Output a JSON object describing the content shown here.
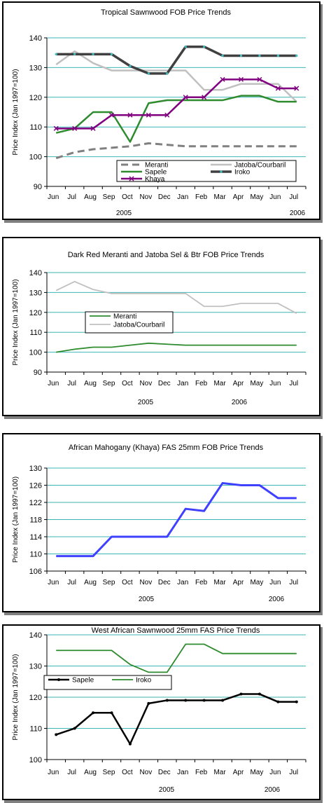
{
  "chart_data": [
    {
      "type": "line",
      "title": "Tropical Sawnwood FOB Price Trends",
      "ylabel": "Price Index (Jan 1997=100)",
      "xlabel": "",
      "categories": [
        "Jun",
        "Jul",
        "Aug",
        "Sep",
        "Oct",
        "Nov",
        "Dec",
        "Jan",
        "Feb",
        "Mar",
        "Apr",
        "May",
        "Jun",
        "Jul"
      ],
      "year_labels": [
        "2005",
        "2006"
      ],
      "ylim": [
        90,
        140
      ],
      "yticks": [
        90,
        100,
        110,
        120,
        130,
        140
      ],
      "grid": true,
      "legend": "bottom-right",
      "series": [
        {
          "name": "Meranti",
          "color": "#808080",
          "values": [
            99.5,
            101.5,
            102.5,
            103,
            103.5,
            104.5,
            104,
            103.5,
            103.5,
            103.5,
            103.5,
            103.5,
            103.5,
            103.5
          ]
        },
        {
          "name": "Jatoba/Courbaril",
          "color": "#c0c0c0",
          "values": [
            131,
            135.5,
            131.5,
            129,
            129,
            129,
            129,
            129,
            122.5,
            122.5,
            124.5,
            124.5,
            124.5,
            118.5
          ]
        },
        {
          "name": "Sapele",
          "color": "#2e8b2e",
          "values": [
            108,
            109.5,
            115,
            115,
            105,
            118,
            119,
            119,
            119,
            119,
            120.5,
            120.5,
            118.5,
            118.5
          ]
        },
        {
          "name": "Iroko",
          "color": "#404040",
          "values": [
            134.5,
            134.5,
            134.5,
            134.5,
            130.5,
            128,
            128,
            137,
            137,
            134,
            134,
            134,
            134,
            134
          ]
        },
        {
          "name": "Khaya",
          "color": "#800080",
          "values": [
            109.5,
            109.5,
            109.5,
            114,
            114,
            114,
            114,
            120,
            120,
            126,
            126,
            126,
            123,
            123
          ]
        }
      ]
    },
    {
      "type": "line",
      "title": "Dark Red Meranti and Jatoba Sel & Btr FOB Price Trends",
      "ylabel": "Price Index (Jan 1997=100)",
      "xlabel": "",
      "categories": [
        "Jun",
        "Jul",
        "Aug",
        "Sep",
        "Oct",
        "Nov",
        "Dec",
        "Jan",
        "Feb",
        "Mar",
        "Apr",
        "May",
        "Jun",
        "Jul"
      ],
      "year_labels": [
        "2005",
        "2006"
      ],
      "ylim": [
        90,
        140
      ],
      "yticks": [
        90,
        100,
        110,
        120,
        130,
        140
      ],
      "grid": true,
      "legend": "center-left",
      "series": [
        {
          "name": "Meranti",
          "color": "#2e8b2e",
          "values": [
            100,
            101.5,
            102.5,
            102.5,
            103.5,
            104.5,
            104,
            103.5,
            103.5,
            103.5,
            103.5,
            103.5,
            103.5,
            103.5
          ]
        },
        {
          "name": "Jatoba/Courbaril",
          "color": "#c0c0c0",
          "values": [
            131,
            135.5,
            131.5,
            129.5,
            129.5,
            129.5,
            129.5,
            129.5,
            123,
            123,
            124.5,
            124.5,
            124.5,
            119.5
          ]
        }
      ]
    },
    {
      "type": "line",
      "title": "African Mahogany (Khaya) FAS 25mm FOB Price Trends",
      "ylabel": "Price Index (Jan 1997=100)",
      "xlabel": "",
      "categories": [
        "Jun",
        "Jul",
        "Aug",
        "Sep",
        "Oct",
        "Nov",
        "Dec",
        "Jan",
        "Feb",
        "Mar",
        "Apr",
        "May",
        "Jun",
        "Jul"
      ],
      "year_labels": [
        "2005",
        "2006"
      ],
      "ylim": [
        106,
        130
      ],
      "yticks": [
        106,
        110,
        114,
        118,
        122,
        126,
        130
      ],
      "grid": true,
      "legend": "none",
      "series": [
        {
          "color": "#4040ff",
          "values": [
            109.5,
            109.5,
            109.5,
            114,
            114,
            114,
            114,
            120.5,
            120,
            126.5,
            126,
            126,
            123,
            123
          ]
        }
      ]
    },
    {
      "type": "line",
      "title": "West African Sawnwood 25mm FAS Price Trends",
      "ylabel": "Price Index (Jan 1997=100)",
      "xlabel": "",
      "categories": [
        "Jun",
        "Jul",
        "Aug",
        "Sep",
        "Oct",
        "Nov",
        "Dec",
        "Jan",
        "Feb",
        "Mar",
        "Apr",
        "May",
        "Jun",
        "Jul"
      ],
      "year_labels": [
        "2005",
        "2006"
      ],
      "ylim": [
        100,
        140
      ],
      "yticks": [
        100,
        110,
        120,
        130,
        140
      ],
      "grid": true,
      "legend": "center-left",
      "series": [
        {
          "name": "Sapele",
          "color": "#000000",
          "values": [
            108,
            110,
            115,
            115,
            105,
            118,
            119,
            119,
            119,
            119,
            121,
            121,
            118.5,
            118.5
          ]
        },
        {
          "name": "Iroko",
          "color": "#2e8b2e",
          "values": [
            135,
            135,
            135,
            135,
            130.5,
            128,
            128,
            137,
            137,
            134,
            134,
            134,
            134,
            134
          ]
        }
      ]
    }
  ]
}
